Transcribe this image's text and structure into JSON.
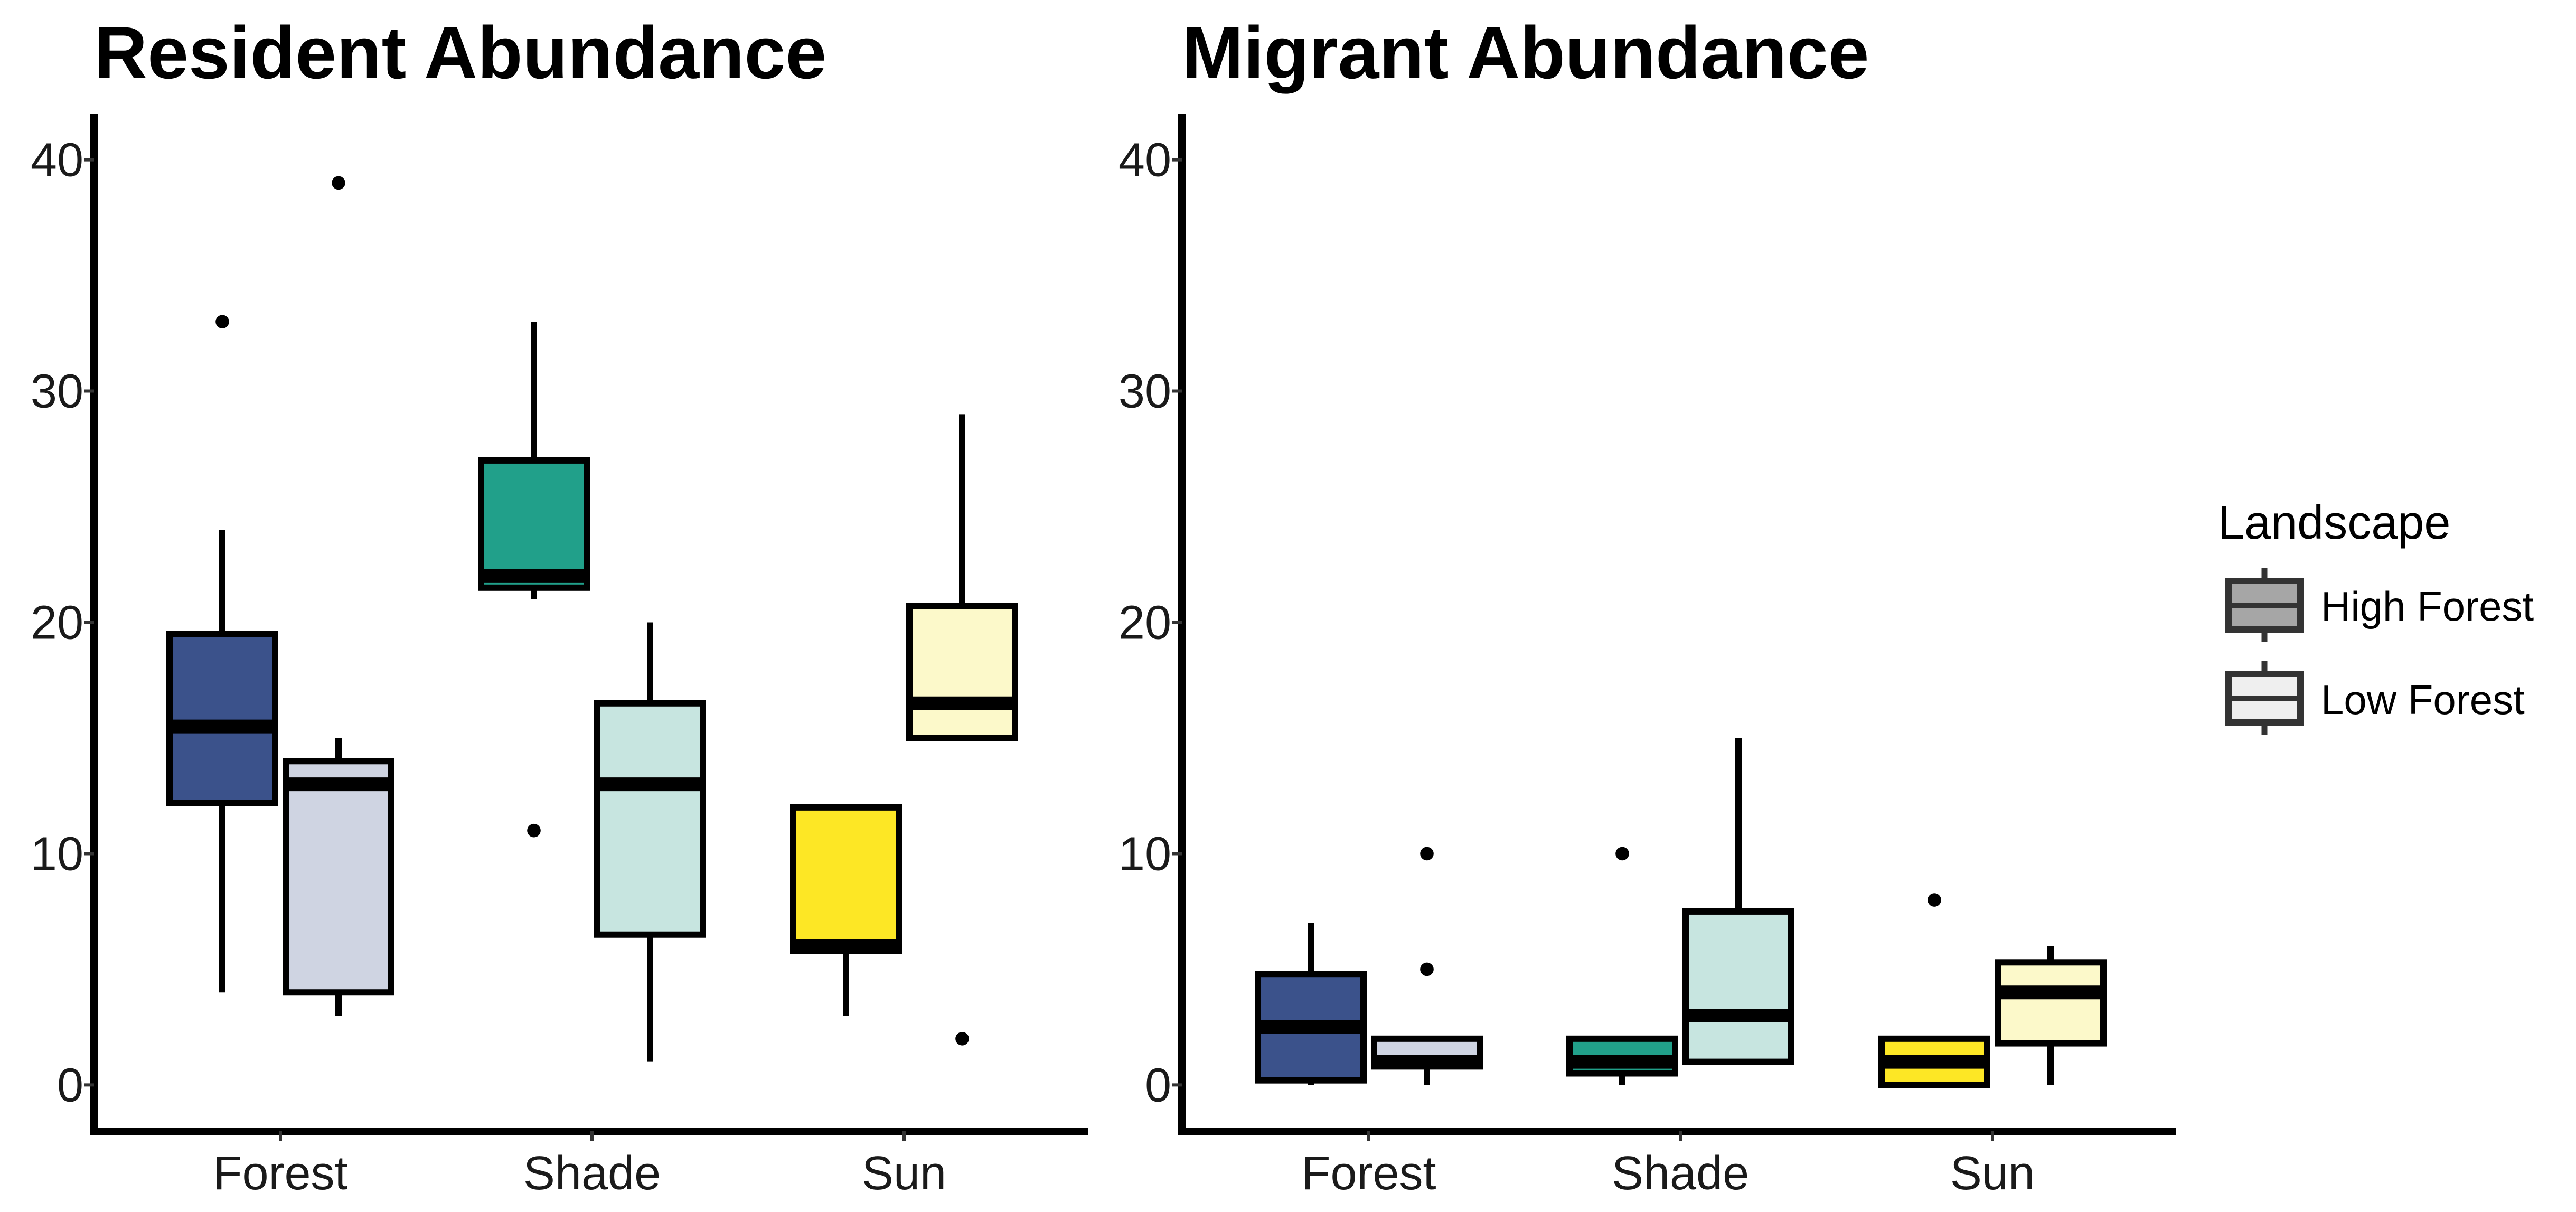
{
  "chart_data": [
    {
      "type": "boxplot",
      "title": "Resident Abundance",
      "xlabel": "",
      "ylabel": "",
      "ylim": [
        -2,
        42
      ],
      "yticks": [
        "0",
        "10",
        "20",
        "30",
        "40"
      ],
      "categories": [
        "Forest",
        "Shade",
        "Sun"
      ],
      "grid": false,
      "series": [
        {
          "name": "High Forest",
          "boxes": [
            {
              "category": "Forest",
              "min": 4,
              "q1": 12.2,
              "median": 15.5,
              "q3": 19.5,
              "max": 24,
              "outliers": [
                33
              ],
              "fill": "#3b528b"
            },
            {
              "category": "Shade",
              "min": 21,
              "q1": 21.5,
              "median": 22,
              "q3": 27,
              "max": 33,
              "outliers": [
                11
              ],
              "fill": "#21a08a"
            },
            {
              "category": "Sun",
              "min": 3,
              "q1": 5.8,
              "median": 6,
              "q3": 12,
              "max": 12,
              "outliers": [],
              "fill": "#fde725"
            }
          ]
        },
        {
          "name": "Low Forest",
          "boxes": [
            {
              "category": "Forest",
              "min": 3,
              "q1": 4,
              "median": 13,
              "q3": 14,
              "max": 15,
              "outliers": [
                39
              ],
              "fill": "#cfd4e2"
            },
            {
              "category": "Shade",
              "min": 1,
              "q1": 6.5,
              "median": 13,
              "q3": 16.5,
              "max": 20,
              "outliers": [],
              "fill": "#c7e5e0"
            },
            {
              "category": "Sun",
              "min": 15,
              "q1": 15,
              "median": 16.5,
              "q3": 20.7,
              "max": 29,
              "outliers": [
                2
              ],
              "fill": "#fcf9ca"
            }
          ]
        }
      ]
    },
    {
      "type": "boxplot",
      "title": "Migrant Abundance",
      "xlabel": "",
      "ylabel": "",
      "ylim": [
        -2,
        42
      ],
      "yticks": [
        "0",
        "10",
        "20",
        "30",
        "40"
      ],
      "categories": [
        "Forest",
        "Shade",
        "Sun"
      ],
      "grid": false,
      "series": [
        {
          "name": "High Forest",
          "boxes": [
            {
              "category": "Forest",
              "min": 0,
              "q1": 0.2,
              "median": 2.5,
              "q3": 4.8,
              "max": 7,
              "outliers": [],
              "fill": "#3b528b"
            },
            {
              "category": "Shade",
              "min": 0,
              "q1": 0.5,
              "median": 1,
              "q3": 2,
              "max": 2,
              "outliers": [
                10
              ],
              "fill": "#21a08a"
            },
            {
              "category": "Sun",
              "min": 0,
              "q1": 0,
              "median": 1,
              "q3": 2,
              "max": 2,
              "outliers": [
                8
              ],
              "fill": "#fde725"
            }
          ]
        },
        {
          "name": "Low Forest",
          "boxes": [
            {
              "category": "Forest",
              "min": 0,
              "q1": 0.8,
              "median": 1,
              "q3": 2,
              "max": 2,
              "outliers": [
                5,
                10
              ],
              "fill": "#cfd4e2"
            },
            {
              "category": "Shade",
              "min": 1,
              "q1": 1,
              "median": 3,
              "q3": 7.5,
              "max": 15,
              "outliers": [],
              "fill": "#c7e5e0"
            },
            {
              "category": "Sun",
              "min": 0,
              "q1": 1.8,
              "median": 4,
              "q3": 5.3,
              "max": 6,
              "outliers": [],
              "fill": "#fcf9ca"
            }
          ]
        }
      ]
    }
  ],
  "legend": {
    "title": "Landscape",
    "position": "right",
    "items": [
      {
        "label": "High Forest",
        "fill": "#a6a6a6"
      },
      {
        "label": "Low Forest",
        "fill": "#efefef"
      }
    ]
  }
}
